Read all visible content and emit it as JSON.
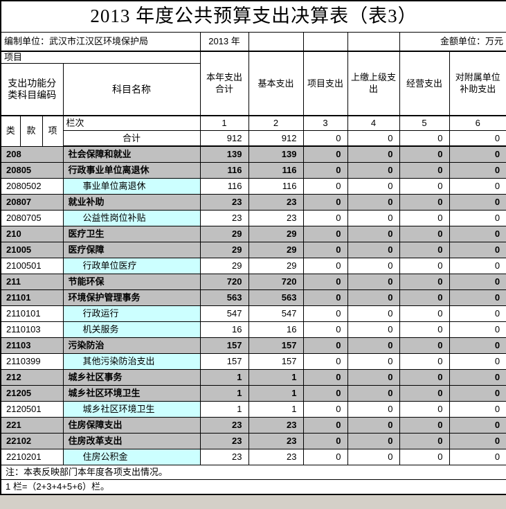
{
  "title": "2013 年度公共预算支出决算表（表3）",
  "meta": {
    "unit_label": "编制单位：武汉市江汉区环境保护局",
    "year": "2013 年",
    "amount_unit": "金额单位：万元"
  },
  "header": {
    "item_label": "项目",
    "code_label": "支出功能分类科目编码",
    "subject_label": "科目名称",
    "columns": [
      "本年支出合计",
      "基本支出",
      "项目支出",
      "上缴上级支出",
      "经营支出",
      "对附属单位补助支出"
    ],
    "code_sub": [
      "类",
      "款",
      "项"
    ],
    "rank_label": "栏次",
    "col_numbers": [
      "1",
      "2",
      "3",
      "4",
      "5",
      "6"
    ]
  },
  "total_row": {
    "label": "合计",
    "values": [
      "912",
      "912",
      "0",
      "0",
      "0",
      "0"
    ]
  },
  "rows": [
    {
      "code": "208",
      "name": "社会保障和就业",
      "level": "category",
      "values": [
        "139",
        "139",
        "0",
        "0",
        "0",
        "0"
      ]
    },
    {
      "code": "20805",
      "name": "行政事业单位离退休",
      "level": "category",
      "values": [
        "116",
        "116",
        "0",
        "0",
        "0",
        "0"
      ]
    },
    {
      "code": "2080502",
      "name": "事业单位离退休",
      "level": "detail",
      "values": [
        "116",
        "116",
        "0",
        "0",
        "0",
        "0"
      ]
    },
    {
      "code": "20807",
      "name": "就业补助",
      "level": "category",
      "values": [
        "23",
        "23",
        "0",
        "0",
        "0",
        "0"
      ]
    },
    {
      "code": "2080705",
      "name": "公益性岗位补贴",
      "level": "detail",
      "values": [
        "23",
        "23",
        "0",
        "0",
        "0",
        "0"
      ]
    },
    {
      "code": "210",
      "name": "医疗卫生",
      "level": "category",
      "values": [
        "29",
        "29",
        "0",
        "0",
        "0",
        "0"
      ]
    },
    {
      "code": "21005",
      "name": "医疗保障",
      "level": "category",
      "values": [
        "29",
        "29",
        "0",
        "0",
        "0",
        "0"
      ]
    },
    {
      "code": "2100501",
      "name": "行政单位医疗",
      "level": "detail",
      "values": [
        "29",
        "29",
        "0",
        "0",
        "0",
        "0"
      ]
    },
    {
      "code": "211",
      "name": "节能环保",
      "level": "category",
      "values": [
        "720",
        "720",
        "0",
        "0",
        "0",
        "0"
      ]
    },
    {
      "code": "21101",
      "name": "环境保护管理事务",
      "level": "category",
      "values": [
        "563",
        "563",
        "0",
        "0",
        "0",
        "0"
      ]
    },
    {
      "code": "2110101",
      "name": "行政运行",
      "level": "detail",
      "values": [
        "547",
        "547",
        "0",
        "0",
        "0",
        "0"
      ]
    },
    {
      "code": "2110103",
      "name": "机关服务",
      "level": "detail",
      "values": [
        "16",
        "16",
        "0",
        "0",
        "0",
        "0"
      ]
    },
    {
      "code": "21103",
      "name": "污染防治",
      "level": "category",
      "values": [
        "157",
        "157",
        "0",
        "0",
        "0",
        "0"
      ]
    },
    {
      "code": "2110399",
      "name": "其他污染防治支出",
      "level": "detail",
      "values": [
        "157",
        "157",
        "0",
        "0",
        "0",
        "0"
      ]
    },
    {
      "code": "212",
      "name": "城乡社区事务",
      "level": "category",
      "values": [
        "1",
        "1",
        "0",
        "0",
        "0",
        "0"
      ]
    },
    {
      "code": "21205",
      "name": "城乡社区环境卫生",
      "level": "category",
      "values": [
        "1",
        "1",
        "0",
        "0",
        "0",
        "0"
      ]
    },
    {
      "code": "2120501",
      "name": "城乡社区环境卫生",
      "level": "detail",
      "values": [
        "1",
        "1",
        "0",
        "0",
        "0",
        "0"
      ]
    },
    {
      "code": "221",
      "name": "住房保障支出",
      "level": "category",
      "values": [
        "23",
        "23",
        "0",
        "0",
        "0",
        "0"
      ]
    },
    {
      "code": "22102",
      "name": "住房改革支出",
      "level": "category",
      "values": [
        "23",
        "23",
        "0",
        "0",
        "0",
        "0"
      ]
    },
    {
      "code": "2210201",
      "name": "住房公积金",
      "level": "detail",
      "values": [
        "23",
        "23",
        "0",
        "0",
        "0",
        "0"
      ]
    }
  ],
  "notes": [
    "注：本表反映部门本年度各项支出情况。",
    "1 栏=（2+3+4+5+6）栏。"
  ],
  "colors": {
    "category_row_bg": "#C0C0C0",
    "detail_name_bg": "#CCFFFF",
    "border": "#000000"
  }
}
